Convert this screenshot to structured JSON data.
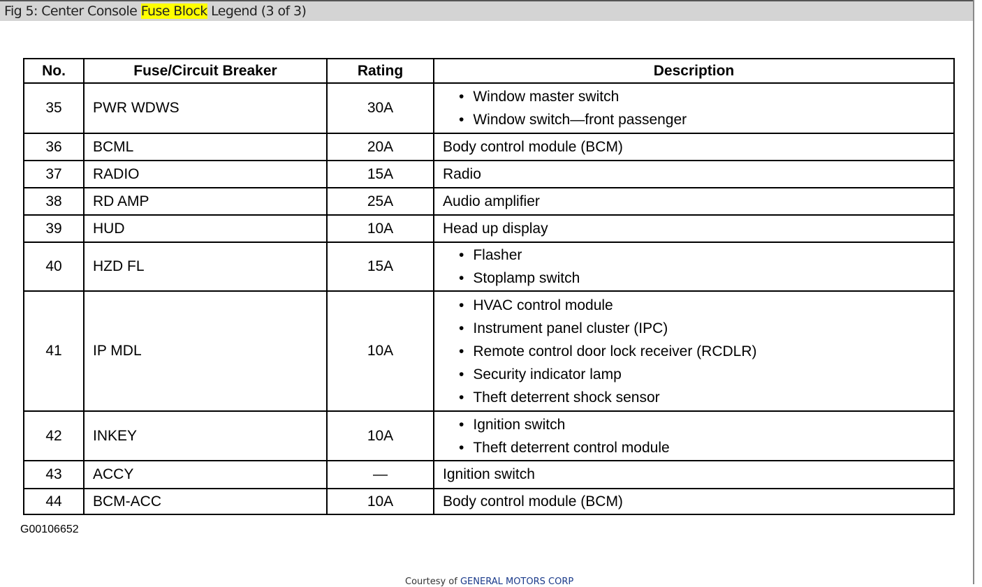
{
  "title": {
    "before": "Fig 5: Center Console ",
    "highlight": "Fuse Block",
    "after": " Legend (3 of 3)"
  },
  "table": {
    "headers": [
      "No.",
      "Fuse/Circuit Breaker",
      "Rating",
      "Description"
    ],
    "rows": [
      {
        "no": "35",
        "fuse": "PWR WDWS",
        "rating": "30A",
        "desc": [
          "Window master switch",
          "Window switch—front passenger"
        ],
        "h": 72
      },
      {
        "no": "36",
        "fuse": "BCML",
        "rating": "20A",
        "desc": "Body control module (BCM)",
        "h": 39
      },
      {
        "no": "37",
        "fuse": "RADIO",
        "rating": "15A",
        "desc": "Radio",
        "h": 39
      },
      {
        "no": "38",
        "fuse": "RD AMP",
        "rating": "25A",
        "desc": "Audio amplifier",
        "h": 39
      },
      {
        "no": "39",
        "fuse": "HUD",
        "rating": "10A",
        "desc": "Head up display",
        "h": 39
      },
      {
        "no": "40",
        "fuse": "HZD FL",
        "rating": "15A",
        "desc": [
          "Flasher",
          "Stoplamp switch"
        ],
        "h": 70
      },
      {
        "no": "41",
        "fuse": "IP MDL",
        "rating": "10A",
        "desc": [
          "HVAC control module",
          "Instrument panel cluster (IPC)",
          "Remote control door lock receiver (RCDLR)",
          "Security indicator lamp",
          "Theft deterrent shock sensor"
        ],
        "h": 172
      },
      {
        "no": "42",
        "fuse": "INKEY",
        "rating": "10A",
        "desc": [
          "Ignition switch",
          "Theft deterrent control module"
        ],
        "h": 71
      },
      {
        "no": "43",
        "fuse": "ACCY",
        "rating": "—",
        "desc": "Ignition switch",
        "h": 40
      },
      {
        "no": "44",
        "fuse": "BCM-ACC",
        "rating": "10A",
        "desc": "Body control module (BCM)",
        "h": 37
      }
    ]
  },
  "graphic_id": "G00106652",
  "courtesy": {
    "prefix": "Courtesy of ",
    "source": "GENERAL MOTORS CORP"
  }
}
